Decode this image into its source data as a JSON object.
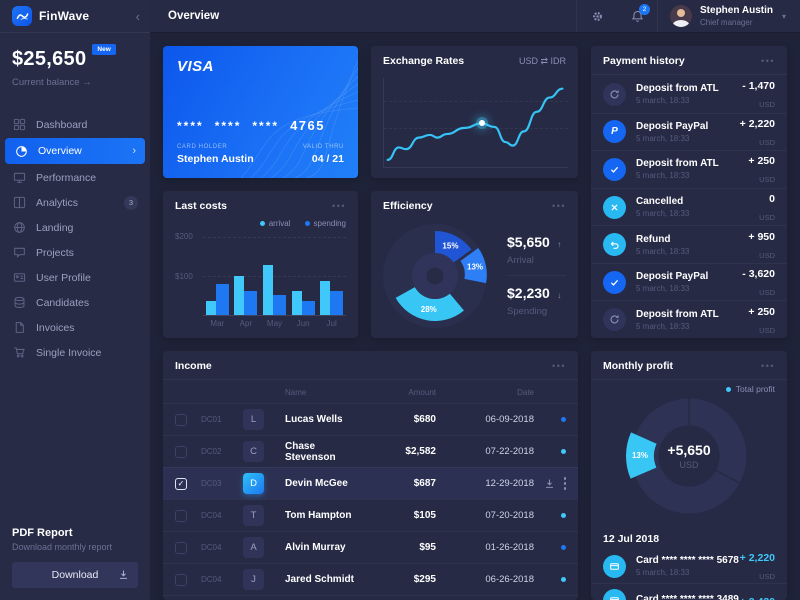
{
  "app": {
    "name": "FinWave"
  },
  "ui": {
    "menu_dots": "•••",
    "collapse_icon": "‹",
    "chevron_right": "›",
    "caret_down": "▾",
    "balance_arrow": "→"
  },
  "balance": {
    "amount": "$25,650",
    "badge": "New",
    "caption": "Current balance"
  },
  "sidebar": {
    "items": [
      {
        "label": "Dashboard",
        "icon": "dashboard-icon"
      },
      {
        "label": "Overview",
        "icon": "overview-icon",
        "active": true
      },
      {
        "label": "Performance",
        "icon": "performance-icon"
      },
      {
        "label": "Analytics",
        "icon": "analytics-icon",
        "badge": "3"
      },
      {
        "label": "Landing",
        "icon": "landing-icon"
      },
      {
        "label": "Projects",
        "icon": "projects-icon"
      },
      {
        "label": "User Profile",
        "icon": "user-profile-icon"
      },
      {
        "label": "Candidates",
        "icon": "candidates-icon"
      },
      {
        "label": "Invoices",
        "icon": "invoices-icon"
      },
      {
        "label": "Single Invoice",
        "icon": "single-invoice-icon"
      }
    ]
  },
  "pdf_report": {
    "title": "PDF Report",
    "subtitle": "Download monthly report",
    "button_label": "Download"
  },
  "topbar": {
    "title": "Overview",
    "notification_count": "2",
    "user_name": "Stephen Austin",
    "user_role": "Chief manager"
  },
  "visa_card": {
    "brand": "VISA",
    "mask_groups": [
      "****",
      "****",
      "****"
    ],
    "last_digits": "4765",
    "holder_label": "CARD HOLDER",
    "holder_name": "Stephen Austin",
    "valid_label": "VALID THRU",
    "valid_value": "04 / 21"
  },
  "exchange_rates": {
    "title": "Exchange Rates",
    "pair": "USD ⇄ IDR"
  },
  "payment_history": {
    "title": "Payment history",
    "items": [
      {
        "title": "Deposit from ATL",
        "subtitle": "5 march, 18:33",
        "amount": "- 1,470",
        "currency": "USD",
        "icon": "refresh"
      },
      {
        "title": "Deposit PayPal",
        "subtitle": "5 march, 18:33",
        "amount": "+ 2,220",
        "currency": "USD",
        "icon": "paypal"
      },
      {
        "title": "Deposit from ATL",
        "subtitle": "5 march, 18:33",
        "amount": "+ 250",
        "currency": "USD",
        "icon": "check"
      },
      {
        "title": "Cancelled",
        "subtitle": "5 march, 18:33",
        "amount": "0",
        "currency": "USD",
        "icon": "cancel"
      },
      {
        "title": "Refund",
        "subtitle": "5 march, 18:33",
        "amount": "+ 950",
        "currency": "USD",
        "icon": "refund"
      },
      {
        "title": "Deposit PayPal",
        "subtitle": "5 march, 18:33",
        "amount": "- 3,620",
        "currency": "USD",
        "icon": "check"
      },
      {
        "title": "Deposit from ATL",
        "subtitle": "5 march, 18:33",
        "amount": "+ 250",
        "currency": "USD",
        "icon": "refresh"
      }
    ]
  },
  "last_costs": {
    "title": "Last costs"
  },
  "efficiency": {
    "title": "Efficiency"
  },
  "income": {
    "title": "Income",
    "columns": [
      "Name",
      "Amount",
      "Date"
    ],
    "rows": [
      {
        "id": "DC01",
        "initial": "L",
        "name": "Lucas Wells",
        "amount": "$680",
        "date": "06-09-2018",
        "indicator": "blue"
      },
      {
        "id": "DC02",
        "initial": "C",
        "name": "Chase Stevenson",
        "amount": "$2,582",
        "date": "07-22-2018",
        "indicator": "cyan"
      },
      {
        "id": "DC03",
        "initial": "D",
        "name": "Devin McGee",
        "amount": "$687",
        "date": "12-29-2018",
        "selected": true
      },
      {
        "id": "DC04",
        "initial": "T",
        "name": "Tom Hampton",
        "amount": "$105",
        "date": "07-20-2018",
        "indicator": "cyan"
      },
      {
        "id": "DC04",
        "initial": "A",
        "name": "Alvin Murray",
        "amount": "$95",
        "date": "01-26-2018",
        "indicator": "blue"
      },
      {
        "id": "DC04",
        "initial": "J",
        "name": "Jared Schmidt",
        "amount": "$295",
        "date": "06-26-2018",
        "indicator": "cyan"
      }
    ]
  },
  "monthly_profit": {
    "title": "Monthly profit",
    "date_group": "12 Jul 2018",
    "transactions": [
      {
        "title": "Card **** **** **** 5678",
        "subtitle": "5 march, 18:33",
        "amount": "+ 2,220",
        "currency": "USD"
      },
      {
        "title": "Card **** **** **** 3489",
        "subtitle": "",
        "amount": "+ 3,430",
        "currency": ""
      }
    ]
  },
  "chart_data": [
    {
      "id": "exchange_rates",
      "type": "line",
      "title": "Exchange Rates",
      "pair": "USD ⇄ IDR",
      "y_axis": "relative 0-100 (no tick labels shown)",
      "points": [
        [
          2,
          8
        ],
        [
          8,
          22
        ],
        [
          12,
          20
        ],
        [
          19,
          33
        ],
        [
          25,
          36
        ],
        [
          29,
          33
        ],
        [
          34,
          37
        ],
        [
          44,
          44
        ],
        [
          53,
          49
        ],
        [
          60,
          45
        ],
        [
          66,
          28
        ],
        [
          70,
          24
        ],
        [
          76,
          40
        ],
        [
          83,
          62
        ],
        [
          90,
          78
        ],
        [
          97,
          88
        ]
      ],
      "highlight_index": 8,
      "line_color": "#36c3f5"
    },
    {
      "id": "last_costs",
      "type": "bar",
      "categories": [
        "Mar",
        "Apr",
        "May",
        "Jun",
        "Jul"
      ],
      "series": [
        {
          "name": "arrival",
          "color": "#3fc8f9",
          "values": [
            35,
            100,
            128,
            62,
            88
          ]
        },
        {
          "name": "spending",
          "color": "#1d78f2",
          "values": [
            80,
            62,
            52,
            35,
            62
          ]
        }
      ],
      "ylim": [
        0,
        200
      ],
      "ytick_labels": [
        "$200",
        "$100"
      ],
      "grid": "dashed"
    },
    {
      "id": "efficiency",
      "type": "donut",
      "segments": [
        {
          "label": "15%",
          "value": 15,
          "start_angle": 0,
          "end_angle": 54,
          "color": "#2056d6"
        },
        {
          "label": "13%",
          "value": 13,
          "start_angle": 54,
          "end_angle": 101,
          "color": "#2e7ef6",
          "explode": 7
        },
        {
          "label": "28%",
          "value": 28,
          "start_angle": 140,
          "end_angle": 241,
          "color": "#38c6f5"
        }
      ],
      "rest_color": "#2b2f4e",
      "callouts": [
        {
          "amount": "$5,650",
          "label": "Arrival",
          "trend": "up",
          "arrow": "↑"
        },
        {
          "amount": "$2,230",
          "label": "Spending",
          "trend": "down",
          "arrow": "↓"
        }
      ]
    },
    {
      "id": "monthly_profit",
      "type": "donut",
      "legend": "Total profit",
      "center_value": "+5,650",
      "center_unit": "USD",
      "segments": [
        {
          "label": "13%",
          "value": 13,
          "start_angle": 247,
          "end_angle": 294,
          "color": "#38c6f5",
          "explode": 5
        }
      ],
      "rest_color": "#2e3254",
      "divider_angles": [
        0,
        118
      ]
    }
  ],
  "colors": {
    "page_bg": "#1f2339",
    "panel_bg": "#262a45",
    "sidebar_bg": "#272b46",
    "accent_blue": "#1566f2",
    "accent_cyan": "#38c6f5",
    "bar_blue": "#1d78f2",
    "muted_text": "#565b7c"
  }
}
